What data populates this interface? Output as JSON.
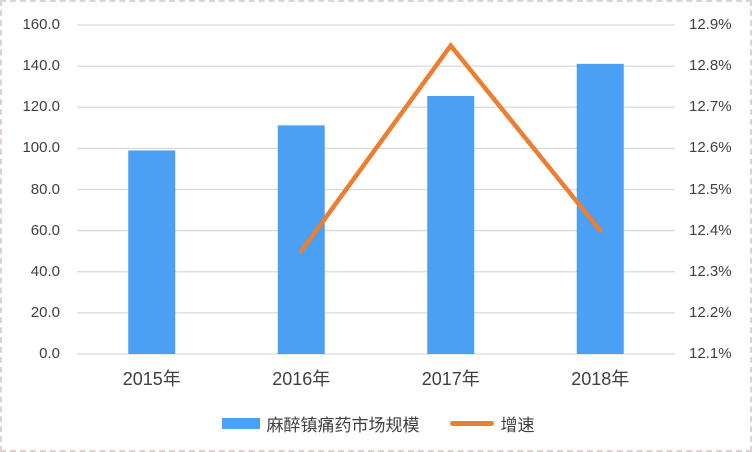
{
  "chart_data": {
    "type": "combo-bar-line",
    "title": "",
    "categories": [
      "2015年",
      "2016年",
      "2017年",
      "2018年"
    ],
    "series": [
      {
        "name": "麻醉镇痛药市场规模",
        "type": "bar",
        "axis": "left",
        "color": "#4aa0f5",
        "values": [
          99.0,
          111.2,
          125.5,
          141.1
        ]
      },
      {
        "name": "增速",
        "type": "line",
        "axis": "right",
        "color": "#ed7d31",
        "unit": "%",
        "values": [
          null,
          12.35,
          12.85,
          12.4
        ]
      }
    ],
    "left_axis": {
      "min": 0,
      "max": 160,
      "step": 20,
      "ticks": [
        "160.0",
        "140.0",
        "120.0",
        "100.0",
        "80.0",
        "60.0",
        "40.0",
        "20.0",
        "0.0"
      ]
    },
    "right_axis": {
      "min": 12.1,
      "max": 12.9,
      "step": 0.1,
      "ticks": [
        "12.9%",
        "12.8%",
        "12.7%",
        "12.6%",
        "12.5%",
        "12.4%",
        "12.3%",
        "12.2%",
        "12.1%"
      ]
    },
    "grid": true,
    "gridline_color": "#d9d9d9",
    "text_color": "#3f3f3f",
    "legend_position": "bottom"
  }
}
